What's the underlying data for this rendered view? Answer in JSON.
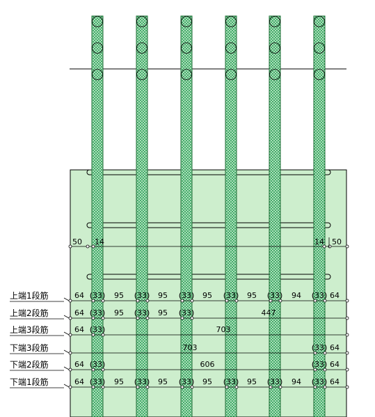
{
  "diagram": {
    "colors": {
      "slab_fill": "#cdeecd",
      "bar_fill": "#2fa35a",
      "line": "#000000"
    },
    "bar_count": 6,
    "side_labels": {
      "left_top": "50",
      "left_inner": "14",
      "right_inner": "14",
      "right_top": "50"
    },
    "rows": [
      {
        "label": "上端1段筋",
        "values": [
          "64",
          "(33)",
          "95",
          "(33)",
          "95",
          "(33)",
          "95",
          "(33)",
          "95",
          "(33)",
          "94",
          "(33)",
          "64"
        ]
      },
      {
        "label": "上端2段筋",
        "values": [
          "64",
          "(33)",
          "95",
          "(33)",
          "95",
          "(33)",
          "447"
        ]
      },
      {
        "label": "上端3段筋",
        "values": [
          "64",
          "(33)",
          "703"
        ]
      },
      {
        "label": "下端3段筋",
        "values": [
          "703",
          "(33)",
          "64"
        ]
      },
      {
        "label": "下端2段筋",
        "values": [
          "64",
          "(33)",
          "606",
          "(33)",
          "64"
        ]
      },
      {
        "label": "下端1段筋",
        "values": [
          "64",
          "(33)",
          "95",
          "(33)",
          "95",
          "(33)",
          "95",
          "(33)",
          "95",
          "(33)",
          "94",
          "(33)",
          "64"
        ]
      }
    ]
  }
}
